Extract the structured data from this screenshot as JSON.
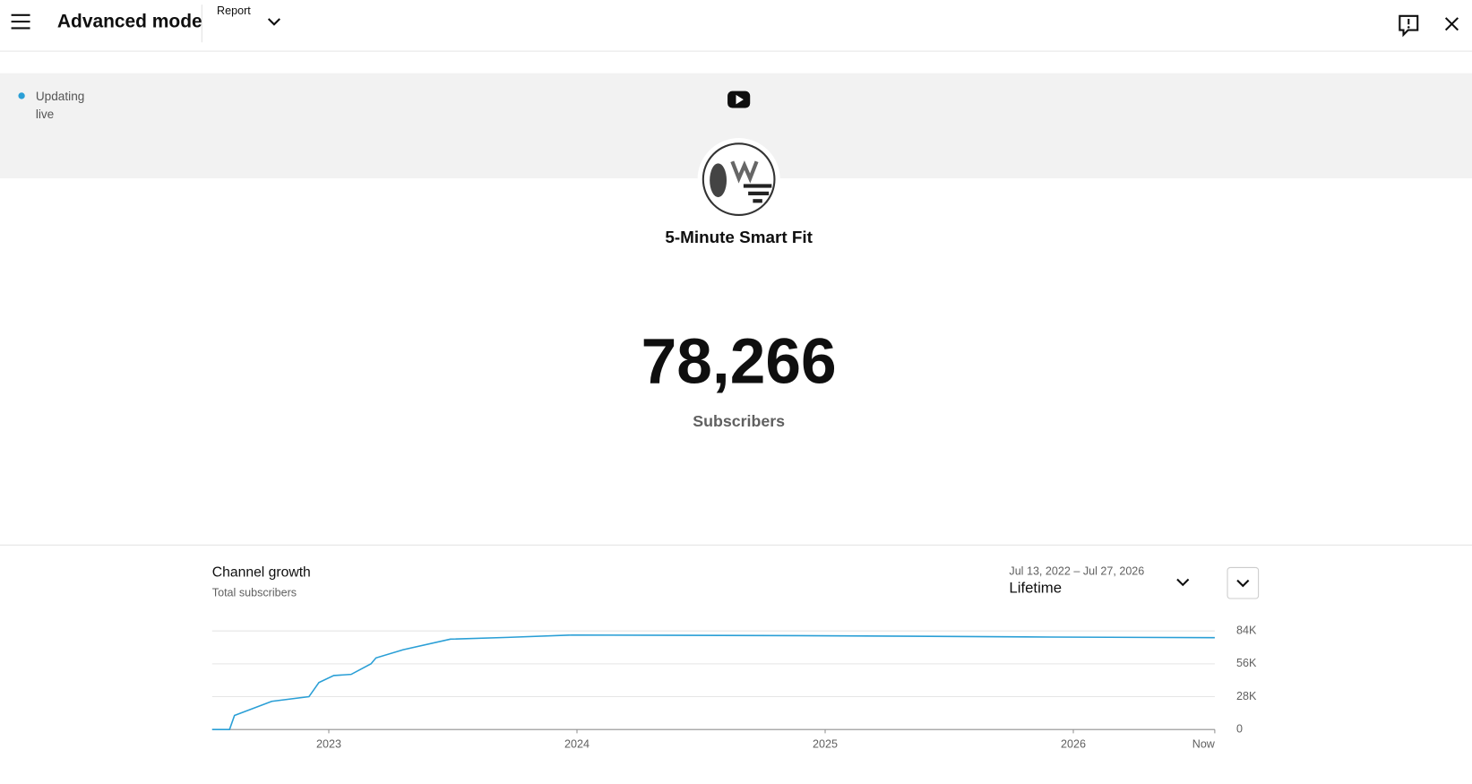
{
  "header": {
    "title": "Advanced mode",
    "menu": "Report"
  },
  "status": "Updating live",
  "channel": {
    "name": "5-Minute Smart Fit",
    "count": "78,266",
    "count_label": "Subscribers"
  },
  "growth": {
    "title": "Channel growth",
    "subtitle": "Total subscribers",
    "date_range": "Jul 13, 2022 – Jul 27, 2026",
    "period": "Lifetime"
  },
  "chart_data": {
    "type": "line",
    "x": [
      2022.53,
      2022.6,
      2022.62,
      2022.77,
      2022.92,
      2022.96,
      2023.02,
      2023.09,
      2023.17,
      2023.19,
      2023.3,
      2023.49,
      2023.72,
      2023.98,
      2024.89,
      2025.34,
      2025.91,
      2026.57
    ],
    "series": [
      {
        "color": "#2a9fd6",
        "values": [
          0,
          0,
          12000,
          24000,
          28000,
          40000,
          46000,
          47000,
          56000,
          61000,
          68000,
          77000,
          78500,
          80500,
          80000,
          79500,
          78800,
          78266
        ]
      }
    ],
    "xlim": [
      2022.53,
      2026.57
    ],
    "xticks": [
      2023,
      2024,
      2025,
      2026,
      {
        "value": 2026.57,
        "label": "Now"
      }
    ],
    "ylim": [
      0,
      84000
    ],
    "yticks": [
      0,
      {
        "value": 28000,
        "label": "28K"
      },
      {
        "value": 56000,
        "label": "56K"
      },
      {
        "value": 84000,
        "label": "84K"
      }
    ],
    "grid": true
  }
}
